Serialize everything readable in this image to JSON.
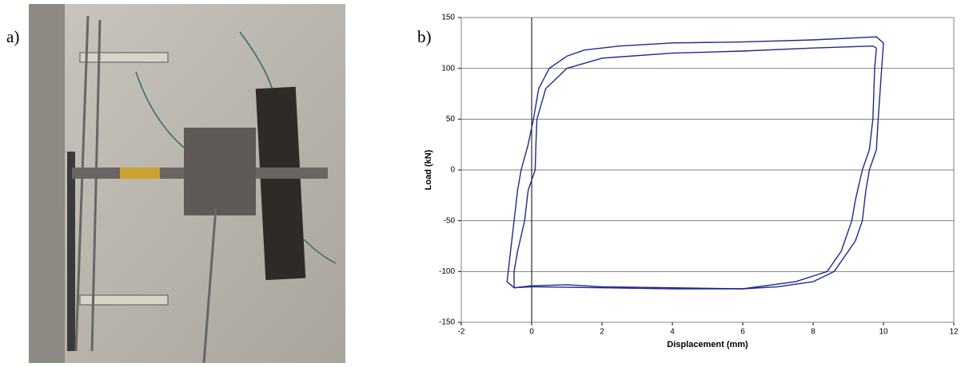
{
  "labels": {
    "a": "a)",
    "b": "b)"
  },
  "chart_data": {
    "type": "line",
    "xlabel": "Displacement (mm)",
    "ylabel": "Load (kN)",
    "xlim": [
      -2,
      12
    ],
    "ylim": [
      -150,
      150
    ],
    "xticks": [
      -2,
      0,
      2,
      4,
      6,
      8,
      10,
      12
    ],
    "yticks": [
      -150,
      -100,
      -50,
      0,
      50,
      100,
      150
    ],
    "grid": true,
    "series": [
      {
        "color": "#1f2a8c",
        "x": [
          -0.3,
          -0.1,
          0.05,
          0.2,
          0.5,
          1.0,
          1.5,
          2.5,
          4,
          6,
          8,
          9.8,
          10.0,
          9.95,
          9.85,
          9.8,
          9.6,
          9.5,
          9.4,
          9.2,
          9.0,
          8.6,
          8.0,
          7,
          6,
          4,
          2,
          1,
          0,
          -0.5,
          -0.7,
          -0.6,
          -0.5,
          -0.4,
          -0.3
        ],
        "values": [
          0,
          25,
          50,
          80,
          100,
          112,
          118,
          122,
          125,
          126,
          128,
          131,
          125,
          100,
          50,
          20,
          0,
          -20,
          -50,
          -70,
          -80,
          -100,
          -110,
          -115,
          -117,
          -116,
          -115,
          -113,
          -114,
          -116,
          -110,
          -80,
          -50,
          -20,
          0
        ]
      },
      {
        "color": "#1f2a8c",
        "x": [
          0.1,
          0.12,
          0.15,
          0.4,
          1.0,
          2,
          4,
          6,
          8,
          9.7,
          9.8,
          9.75,
          9.7,
          9.6,
          9.4,
          9.2,
          9.1,
          8.8,
          8.4,
          7.5,
          6,
          4,
          2,
          0,
          -0.5,
          -0.5,
          -0.4,
          -0.2,
          -0.1,
          0.1
        ],
        "values": [
          0,
          25,
          50,
          80,
          100,
          110,
          115,
          117,
          120,
          122,
          120,
          100,
          50,
          20,
          0,
          -30,
          -50,
          -80,
          -100,
          -110,
          -117,
          -117,
          -116,
          -115,
          -116,
          -100,
          -80,
          -50,
          -20,
          0
        ]
      }
    ]
  }
}
